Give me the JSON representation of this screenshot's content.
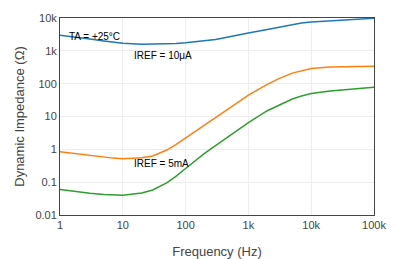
{
  "chart_data": {
    "type": "line",
    "log": true,
    "grid": true,
    "xlabel": "Frequency (Hz)",
    "ylabel": "Dynamic Impedance (Ω)",
    "x": [
      1,
      2,
      3,
      5,
      7,
      10,
      20,
      30,
      50,
      70,
      100,
      200,
      300,
      500,
      700,
      1000,
      2000,
      3000,
      5000,
      7000,
      10000,
      20000,
      50000,
      100000
    ],
    "series": [
      {
        "values": [
          3000,
          2600,
          2300,
          2000,
          1850,
          1700,
          1600,
          1600,
          1620,
          1680,
          1750,
          2000,
          2200,
          2700,
          3100,
          3500,
          4500,
          5200,
          6300,
          7000,
          7600,
          8300,
          9200,
          9800
        ]
      },
      {
        "values": [
          0.85,
          0.72,
          0.64,
          0.57,
          0.54,
          0.52,
          0.55,
          0.63,
          0.95,
          1.4,
          2.2,
          5.5,
          9.0,
          18,
          28,
          45,
          95,
          140,
          210,
          250,
          290,
          320,
          335,
          340
        ]
      },
      {
        "values": [
          0.06,
          0.05,
          0.046,
          0.042,
          0.04,
          0.04,
          0.047,
          0.058,
          0.095,
          0.15,
          0.26,
          0.75,
          1.3,
          2.6,
          4.2,
          6.5,
          15,
          22,
          34,
          42,
          50,
          60,
          70,
          78
        ]
      }
    ],
    "xlim": [
      1,
      100000
    ],
    "xticks": [
      1,
      10,
      100,
      {
        "value": 1000,
        "label": "1k"
      },
      {
        "value": 10000,
        "label": "10k"
      },
      {
        "value": 100000,
        "label": "100k"
      }
    ],
    "ylim": [
      0.01,
      10000
    ],
    "yticks": [
      0.01,
      0.1,
      1,
      10,
      100,
      {
        "value": 1000,
        "label": "1k"
      },
      {
        "value": 10000,
        "label": "10k"
      }
    ],
    "annotations": [
      {
        "text": "TA = +25°C",
        "x": 1.3,
        "y": 4500
      },
      {
        "text": "IREF = 10μA",
        "x": 14,
        "y": 700
      },
      {
        "text": "IREF = 5mA",
        "x": 14,
        "y": 0.38
      }
    ]
  }
}
